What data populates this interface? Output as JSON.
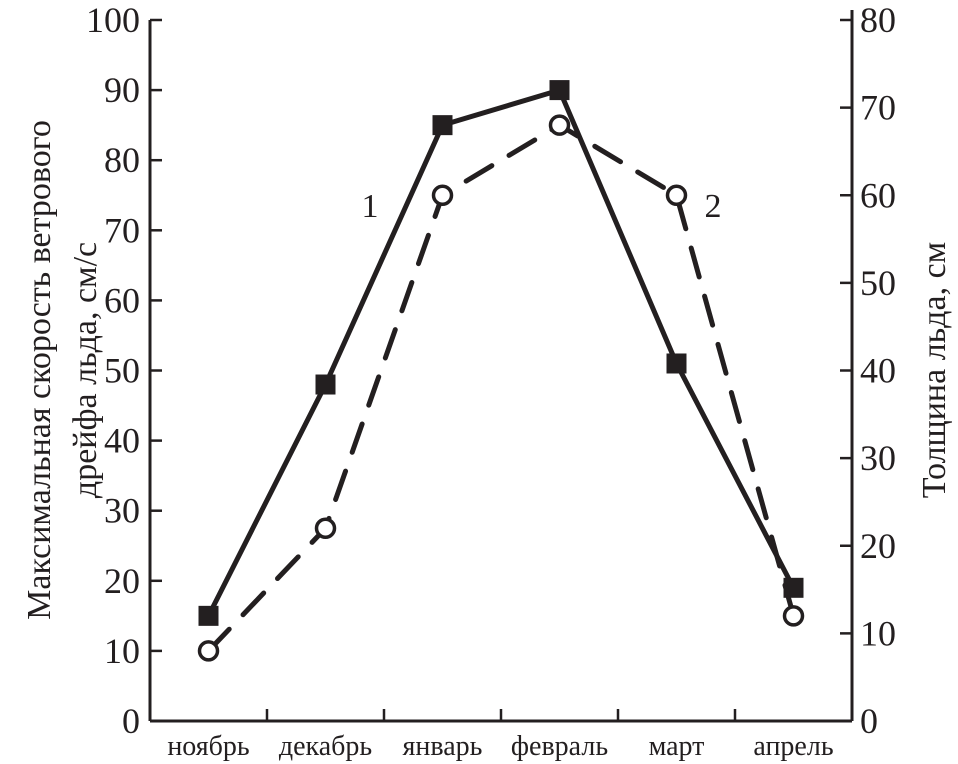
{
  "chart_data": {
    "type": "line",
    "title": "",
    "categories": [
      "ноябрь",
      "декабрь",
      "январь",
      "февраль",
      "март",
      "апрель"
    ],
    "ylabel_left_lines": [
      "Максимальная скорость ветрового",
      "дрейфа льда, см/с"
    ],
    "ylabel_right": "Толщина льда, см",
    "ylim_left": [
      0,
      100
    ],
    "ylim_right": [
      0,
      80
    ],
    "yticks_left": [
      0,
      10,
      20,
      30,
      40,
      50,
      60,
      70,
      80,
      90,
      100
    ],
    "yticks_right": [
      0,
      10,
      20,
      30,
      40,
      50,
      60,
      70,
      80
    ],
    "grid": false,
    "series": [
      {
        "name": "1",
        "axis": "left",
        "style": "solid",
        "marker": "filled-square",
        "values": [
          15,
          48,
          85,
          90,
          51,
          19
        ]
      },
      {
        "name": "2",
        "axis": "right",
        "style": "dashed",
        "marker": "open-circle",
        "values": [
          8,
          22,
          60,
          68,
          60,
          12
        ]
      }
    ],
    "colors": {
      "ink": "#231f20"
    }
  }
}
